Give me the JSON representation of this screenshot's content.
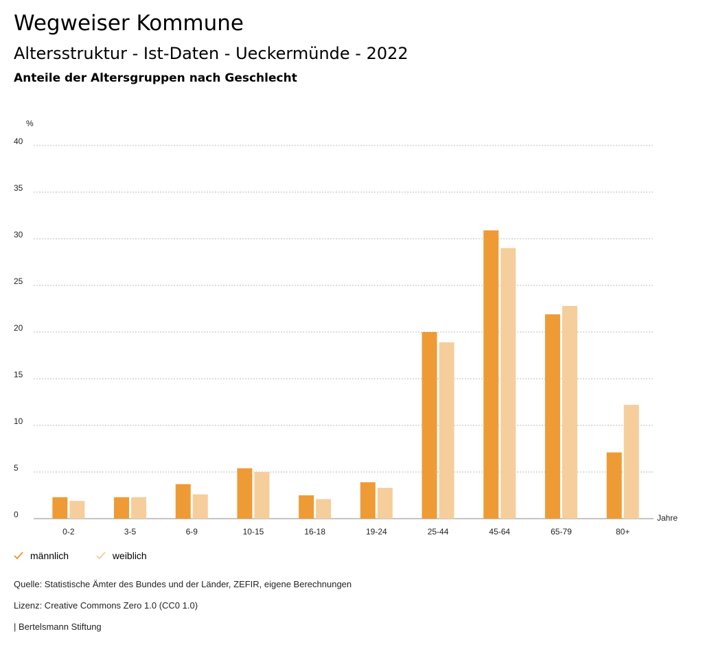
{
  "header": {
    "title": "Wegweiser Kommune",
    "subtitle": "Altersstruktur - Ist-Daten - Ueckermünde - 2022",
    "subsubtitle": "Anteile der Altersgruppen nach Geschlecht"
  },
  "colors": {
    "male": "#ee9b35",
    "female": "#f5ce9c",
    "grid": "#b8b8b8"
  },
  "chart_data": {
    "type": "bar",
    "ylabel": "%",
    "xlabel": "Jahre",
    "ylim": [
      0,
      40
    ],
    "yticks": [
      0,
      5,
      10,
      15,
      20,
      25,
      30,
      35,
      40
    ],
    "categories": [
      "0-2",
      "3-5",
      "6-9",
      "10-15",
      "16-18",
      "19-24",
      "25-44",
      "45-64",
      "65-79",
      "80+"
    ],
    "series": [
      {
        "name": "männlich",
        "values": [
          2.3,
          2.3,
          3.7,
          5.4,
          2.5,
          3.9,
          20.0,
          30.9,
          21.9,
          7.1
        ]
      },
      {
        "name": "weiblich",
        "values": [
          1.9,
          2.3,
          2.6,
          5.0,
          2.1,
          3.3,
          18.9,
          29.0,
          22.8,
          12.2
        ]
      }
    ]
  },
  "legend": {
    "male_label": "männlich",
    "female_label": "weiblich"
  },
  "footer": {
    "source": "Quelle: Statistische Ämter des Bundes und der Länder, ZEFIR, eigene Berechnungen",
    "license": "Lizenz: Creative Commons Zero 1.0 (CC0 1.0)",
    "publisher": "| Bertelsmann Stiftung"
  }
}
